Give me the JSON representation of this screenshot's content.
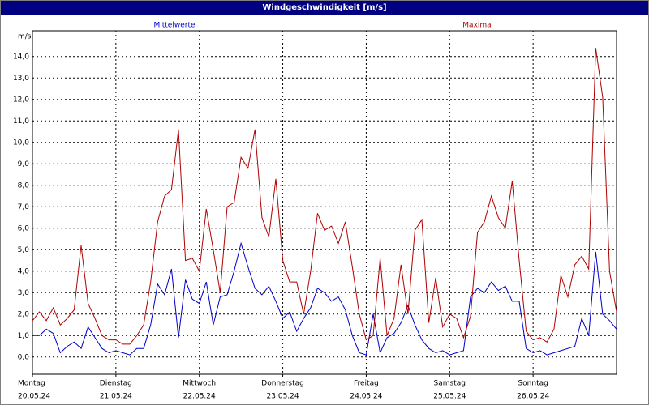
{
  "chart_data": {
    "type": "line",
    "title": "Windgeschwindigkeit [m/s]",
    "y_unit": "m/s",
    "categories": [
      "Montag",
      null,
      null,
      null,
      null,
      null,
      null,
      null,
      null,
      null,
      null,
      null,
      "Dienstag",
      null,
      null,
      null,
      null,
      null,
      null,
      null,
      null,
      null,
      null,
      null,
      "Mittwoch",
      null,
      null,
      null,
      null,
      null,
      null,
      null,
      null,
      null,
      null,
      null,
      "Donnerstag",
      null,
      null,
      null,
      null,
      null,
      null,
      null,
      null,
      null,
      null,
      null,
      "Freitag",
      null,
      null,
      null,
      null,
      null,
      null,
      null,
      null,
      null,
      null,
      null,
      "Samstag",
      null,
      null,
      null,
      null,
      null,
      null,
      null,
      null,
      null,
      null,
      null,
      "Sonntag",
      null,
      null,
      null,
      null,
      null,
      null,
      null,
      null,
      null,
      null,
      null,
      null
    ],
    "dates": [
      "20.05.24",
      null,
      null,
      null,
      null,
      null,
      null,
      null,
      null,
      null,
      null,
      null,
      "21.05.24",
      null,
      null,
      null,
      null,
      null,
      null,
      null,
      null,
      null,
      null,
      null,
      "22.05.24",
      null,
      null,
      null,
      null,
      null,
      null,
      null,
      null,
      null,
      null,
      null,
      "23.05.24",
      null,
      null,
      null,
      null,
      null,
      null,
      null,
      null,
      null,
      null,
      null,
      "24.05.24",
      null,
      null,
      null,
      null,
      null,
      null,
      null,
      null,
      null,
      null,
      null,
      "25.05.24",
      null,
      null,
      null,
      null,
      null,
      null,
      null,
      null,
      null,
      null,
      null,
      "26.05.24",
      null,
      null,
      null,
      null,
      null,
      null,
      null,
      null,
      null,
      null,
      null,
      null
    ],
    "series": [
      {
        "name": "Mittelwerte",
        "color": "#0000c8",
        "values": [
          1.0,
          1.0,
          1.3,
          1.1,
          0.2,
          0.5,
          0.7,
          0.4,
          1.4,
          0.9,
          0.4,
          0.2,
          0.3,
          0.2,
          0.1,
          0.4,
          0.4,
          1.5,
          3.4,
          2.9,
          4.1,
          0.9,
          3.6,
          2.7,
          2.5,
          3.5,
          1.5,
          2.8,
          2.9,
          4.0,
          5.3,
          4.2,
          3.2,
          2.9,
          3.3,
          2.6,
          1.8,
          2.1,
          1.2,
          1.8,
          2.3,
          3.2,
          3.0,
          2.6,
          2.8,
          2.2,
          1.0,
          0.2,
          0.1,
          2.0,
          0.2,
          0.9,
          1.1,
          1.6,
          2.4,
          1.5,
          0.8,
          0.4,
          0.2,
          0.3,
          0.1,
          0.2,
          0.3,
          2.8,
          3.2,
          3.0,
          3.5,
          3.1,
          3.3,
          2.6,
          2.6,
          0.4,
          0.2,
          0.3,
          0.1,
          0.2,
          0.3,
          0.4,
          0.5,
          1.8,
          1.0,
          4.9,
          2.0,
          1.7,
          1.3
        ]
      },
      {
        "name": "Maxima",
        "color": "#b00000",
        "values": [
          1.7,
          2.1,
          1.7,
          2.3,
          1.5,
          1.8,
          2.2,
          5.2,
          2.5,
          1.8,
          1.0,
          0.8,
          0.8,
          0.6,
          0.6,
          1.0,
          1.5,
          3.5,
          6.3,
          7.5,
          7.8,
          10.6,
          4.5,
          4.6,
          4.0,
          6.9,
          5.0,
          3.0,
          7.0,
          7.2,
          9.3,
          8.8,
          10.6,
          6.5,
          5.6,
          8.3,
          4.5,
          3.5,
          3.5,
          2.0,
          4.0,
          6.7,
          5.9,
          6.1,
          5.3,
          6.3,
          4.2,
          2.0,
          0.8,
          1.0,
          4.6,
          1.0,
          1.8,
          4.3,
          2.0,
          5.9,
          6.4,
          1.6,
          3.7,
          1.4,
          2.0,
          1.8,
          0.9,
          1.9,
          5.8,
          6.3,
          7.5,
          6.5,
          6.0,
          8.2,
          4.5,
          1.2,
          0.8,
          0.9,
          0.7,
          1.3,
          3.8,
          2.8,
          4.3,
          4.7,
          4.1,
          14.4,
          12.1,
          4.0,
          2.1
        ]
      }
    ],
    "ylim": [
      -0.8,
      15.2
    ],
    "yticks": [
      {
        "value": 0,
        "label": "0,0"
      },
      {
        "value": 1,
        "label": "1,0"
      },
      {
        "value": 2,
        "label": "2,0"
      },
      {
        "value": 3,
        "label": "3,0"
      },
      {
        "value": 4,
        "label": "4,0"
      },
      {
        "value": 5,
        "label": "5,0"
      },
      {
        "value": 6,
        "label": "6,0"
      },
      {
        "value": 7,
        "label": "7,0"
      },
      {
        "value": 8,
        "label": "8,0"
      },
      {
        "value": 9,
        "label": "9,0"
      },
      {
        "value": 10,
        "label": "10,0"
      },
      {
        "value": 11,
        "label": "11,0"
      },
      {
        "value": 12,
        "label": "12,0"
      },
      {
        "value": 13,
        "label": "13,0"
      },
      {
        "value": 14,
        "label": "14,0"
      }
    ],
    "grid": true
  }
}
